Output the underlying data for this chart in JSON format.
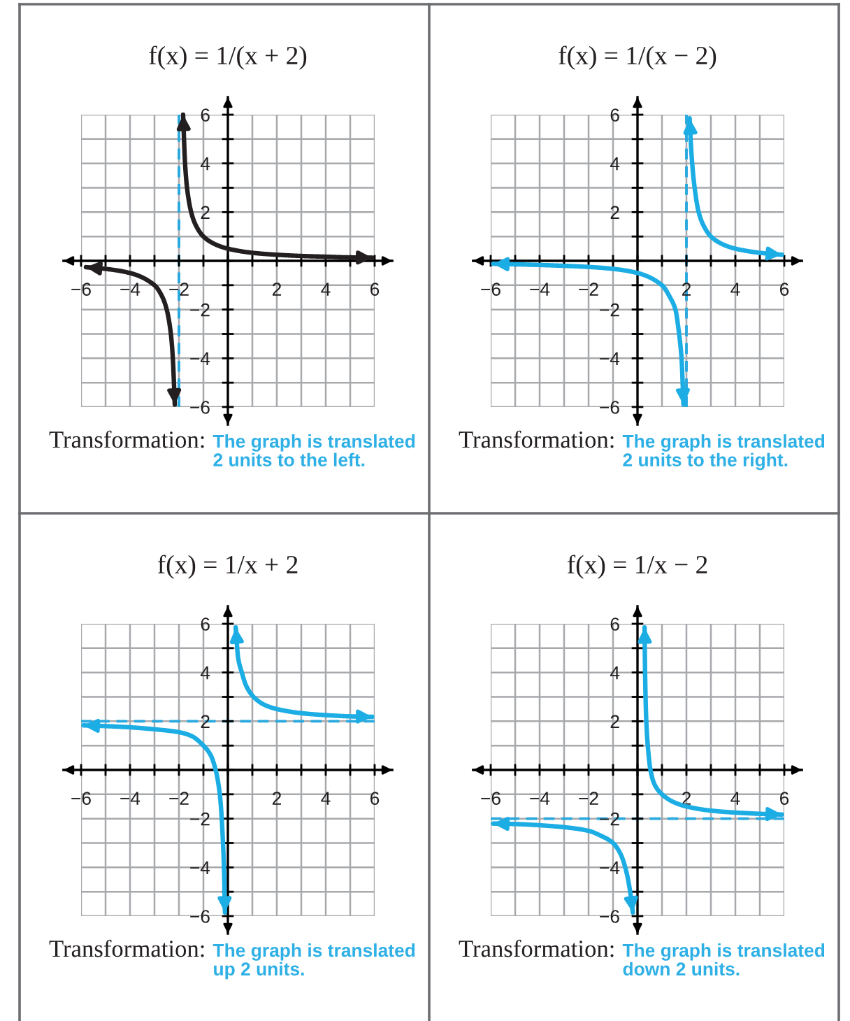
{
  "chart_data": [
    {
      "type": "line",
      "title": "f(x) = 1/(x + 2)",
      "annotations": [
        "Transformation:",
        "The graph is translated 2 units to the left."
      ],
      "xlim": [
        -6,
        6
      ],
      "ylim": [
        -6,
        6
      ],
      "xticks": [
        -6,
        {
          "value": -5,
          "label": null
        },
        -4,
        {
          "value": -3,
          "label": null
        },
        -2,
        {
          "value": -1,
          "label": null
        },
        {
          "value": 0,
          "label": null
        },
        {
          "value": 1,
          "label": null
        },
        2,
        {
          "value": 3,
          "label": null
        },
        4,
        {
          "value": 5,
          "label": null
        },
        6
      ],
      "yticks": [
        -6,
        {
          "value": -5,
          "label": null
        },
        -4,
        {
          "value": -3,
          "label": null
        },
        -2,
        {
          "value": -1,
          "label": null
        },
        {
          "value": 0,
          "label": null
        },
        {
          "value": 1,
          "label": null
        },
        2,
        {
          "value": 3,
          "label": null
        },
        4,
        {
          "value": 5,
          "label": null
        },
        6
      ],
      "grid": true,
      "ref_lines": [
        {
          "axis": "x",
          "value": -2,
          "color": "#29a9df",
          "line_style": "dashed"
        }
      ],
      "series": [
        {
          "color": "#231f20",
          "x": [
            -1.83,
            -1.75,
            -1.67,
            -1.5,
            -1.33,
            -1,
            -0.5,
            0,
            1,
            2,
            3,
            4,
            5,
            5.9
          ],
          "values": [
            6,
            4,
            3,
            2,
            1.5,
            1,
            0.67,
            0.5,
            0.33,
            0.25,
            0.2,
            0.17,
            0.14,
            0.13
          ]
        },
        {
          "color": "#231f20",
          "x": [
            -5.8,
            -5,
            -4,
            -3,
            -2.67,
            -2.5,
            -2.33,
            -2.25,
            -2.17
          ],
          "values": [
            -0.26,
            -0.33,
            -0.5,
            -1,
            -1.5,
            -2,
            -3,
            -4,
            -5.9
          ]
        }
      ]
    },
    {
      "type": "line",
      "title": "f(x) = 1/(x − 2)",
      "annotations": [
        "Transformation:",
        "The graph is translated 2 units to the right."
      ],
      "xlim": [
        -6,
        6
      ],
      "ylim": [
        -6,
        6
      ],
      "xticks": [
        -6,
        {
          "value": -5,
          "label": null
        },
        -4,
        {
          "value": -3,
          "label": null
        },
        -2,
        {
          "value": -1,
          "label": null
        },
        {
          "value": 0,
          "label": null
        },
        {
          "value": 1,
          "label": null
        },
        2,
        {
          "value": 3,
          "label": null
        },
        4,
        {
          "value": 5,
          "label": null
        },
        6
      ],
      "yticks": [
        -6,
        {
          "value": -5,
          "label": null
        },
        -4,
        {
          "value": -3,
          "label": null
        },
        -2,
        {
          "value": -1,
          "label": null
        },
        {
          "value": 0,
          "label": null
        },
        {
          "value": 1,
          "label": null
        },
        2,
        {
          "value": 3,
          "label": null
        },
        4,
        {
          "value": 5,
          "label": null
        },
        6
      ],
      "grid": true,
      "ref_lines": [
        {
          "axis": "x",
          "value": 2,
          "color": "#29a9df",
          "line_style": "dashed"
        }
      ],
      "series": [
        {
          "color": "#1bade4",
          "x": [
            -5.9,
            -4,
            -2,
            -1,
            0,
            1,
            1.33,
            1.55,
            1.7,
            1.8,
            1.88
          ],
          "values": [
            -0.12,
            -0.17,
            -0.25,
            -0.33,
            -0.5,
            -1,
            -1.5,
            -2,
            -3,
            -4,
            -5.9
          ]
        },
        {
          "color": "#1bade4",
          "x": [
            2.13,
            2.2,
            2.3,
            2.5,
            2.7,
            3,
            3.5,
            4,
            5,
            5.9
          ],
          "values": [
            5.85,
            4.5,
            3.3,
            2,
            1.45,
            1,
            0.67,
            0.5,
            0.33,
            0.25
          ]
        }
      ]
    },
    {
      "type": "line",
      "title": "f(x) = 1/x + 2",
      "annotations": [
        "Transformation:",
        "The graph is translated up 2 units."
      ],
      "xlim": [
        -6,
        6
      ],
      "ylim": [
        -6,
        6
      ],
      "xticks": [
        -6,
        {
          "value": -5,
          "label": null
        },
        -4,
        {
          "value": -3,
          "label": null
        },
        -2,
        {
          "value": -1,
          "label": null
        },
        {
          "value": 0,
          "label": null
        },
        {
          "value": 1,
          "label": null
        },
        2,
        {
          "value": 3,
          "label": null
        },
        4,
        {
          "value": 5,
          "label": null
        },
        6
      ],
      "yticks": [
        -6,
        {
          "value": -5,
          "label": null
        },
        -4,
        {
          "value": -3,
          "label": null
        },
        -2,
        {
          "value": -1,
          "label": null
        },
        {
          "value": 0,
          "label": null
        },
        {
          "value": 1,
          "label": null
        },
        2,
        {
          "value": 3,
          "label": null
        },
        4,
        {
          "value": 5,
          "label": null
        },
        6
      ],
      "grid": true,
      "ref_lines": [
        {
          "axis": "y",
          "value": 2,
          "color": "#29a9df",
          "line_style": "dashed"
        }
      ],
      "series": [
        {
          "color": "#1bade4",
          "x": [
            -5.9,
            -5,
            -4,
            -3,
            -2,
            -1.5,
            -1,
            -0.7,
            -0.5,
            -0.33,
            -0.25,
            -0.2,
            -0.16,
            -0.12
          ],
          "values": [
            1.83,
            1.8,
            1.75,
            1.67,
            1.55,
            1.4,
            1,
            0.6,
            0,
            -1,
            -2,
            -3,
            -4,
            -5.85
          ]
        },
        {
          "color": "#1bade4",
          "x": [
            0.32,
            0.42,
            0.57,
            0.75,
            1.05,
            1.5,
            2,
            3,
            4,
            5,
            5.9
          ],
          "values": [
            5.85,
            4.6,
            4,
            3.45,
            3,
            2.67,
            2.5,
            2.33,
            2.25,
            2.2,
            2.18
          ]
        }
      ]
    },
    {
      "type": "line",
      "title": "f(x) = 1/x − 2",
      "annotations": [
        "Transformation:",
        "The graph is translated down 2 units."
      ],
      "xlim": [
        -6,
        6
      ],
      "ylim": [
        -6,
        6
      ],
      "xticks": [
        -6,
        {
          "value": -5,
          "label": null
        },
        -4,
        {
          "value": -3,
          "label": null
        },
        -2,
        {
          "value": -1,
          "label": null
        },
        {
          "value": 0,
          "label": null
        },
        {
          "value": 1,
          "label": null
        },
        2,
        {
          "value": 3,
          "label": null
        },
        4,
        {
          "value": 5,
          "label": null
        },
        6
      ],
      "yticks": [
        -6,
        {
          "value": -5,
          "label": null
        },
        -4,
        {
          "value": -3,
          "label": null
        },
        -2,
        {
          "value": -1,
          "label": null
        },
        {
          "value": 0,
          "label": null
        },
        {
          "value": 1,
          "label": null
        },
        2,
        {
          "value": 3,
          "label": null
        },
        4,
        {
          "value": 5,
          "label": null
        },
        6
      ],
      "grid": true,
      "ref_lines": [
        {
          "axis": "y",
          "value": -2,
          "color": "#29a9df",
          "line_style": "dashed"
        }
      ],
      "series": [
        {
          "color": "#1bade4",
          "x": [
            -5.9,
            -5,
            -4,
            -3,
            -2,
            -1.5,
            -1,
            -0.67,
            -0.45,
            -0.3,
            -0.19
          ],
          "values": [
            -2.2,
            -2.22,
            -2.27,
            -2.35,
            -2.5,
            -2.7,
            -3,
            -3.5,
            -4.2,
            -5,
            -5.85
          ]
        },
        {
          "color": "#1bade4",
          "x": [
            0.29,
            0.31,
            0.36,
            0.42,
            0.53,
            0.7,
            1,
            1.5,
            2,
            3,
            4,
            5,
            5.9
          ],
          "values": [
            5.85,
            4,
            2,
            1,
            0,
            -0.6,
            -1,
            -1.33,
            -1.5,
            -1.67,
            -1.75,
            -1.8,
            -1.83
          ]
        }
      ]
    }
  ]
}
